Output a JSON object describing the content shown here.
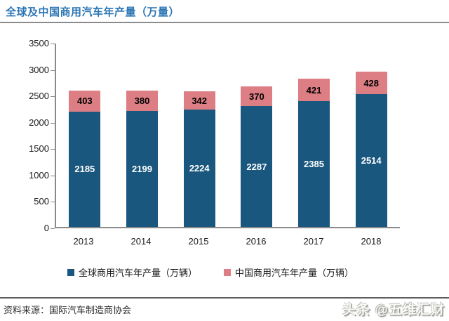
{
  "title": "全球及中国商用汽车年产量（万量）",
  "footer": {
    "source": "资料来源：国际汽车制造商协会",
    "watermark": "头条 @五维汇财"
  },
  "colors": {
    "title_blue": "#2C76B4",
    "global_blue": "#1A577E",
    "china_pink": "#DD7E84",
    "axis_gray": "#8A8A8A"
  },
  "chart_data": {
    "type": "bar",
    "stacked": true,
    "title": "全球及中国商用汽车年产量（万量）",
    "categories": [
      "2013",
      "2014",
      "2015",
      "2016",
      "2017",
      "2018"
    ],
    "series": [
      {
        "name": "全球商用汽车年产量（万辆）",
        "color": "#1A577E",
        "label_color": "#ffffff",
        "values": [
          2185,
          2199,
          2224,
          2287,
          2385,
          2514
        ]
      },
      {
        "name": "中国商用汽车年产量（万辆）",
        "color": "#DD7E84",
        "label_color": "#000000",
        "values": [
          403,
          380,
          342,
          370,
          421,
          428
        ]
      }
    ],
    "xlabel": "",
    "ylabel": "",
    "ylim": [
      0,
      3500
    ],
    "y_ticks": [
      0,
      500,
      1000,
      1500,
      2000,
      2500,
      3000,
      3500
    ],
    "grid": false,
    "legend_position": "bottom"
  }
}
